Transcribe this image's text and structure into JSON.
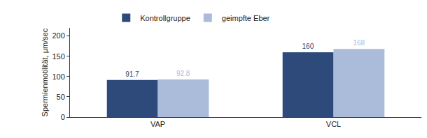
{
  "chart_data": {
    "type": "bar",
    "categories": [
      "VAP",
      "VCL"
    ],
    "series": [
      {
        "name": "Kontrollgruppe",
        "color": "#2e4a7b",
        "values": [
          91.7,
          160
        ]
      },
      {
        "name": "geimpfte Eber",
        "color": "#aabcd9",
        "values": [
          92.8,
          168
        ]
      }
    ],
    "y_label": "Spermienmotilität, µm/sec",
    "ylim": [
      0,
      220
    ],
    "yticks": [
      0,
      50,
      100,
      150,
      200
    ],
    "data_labels": true,
    "legend": "top",
    "grid": false
  }
}
